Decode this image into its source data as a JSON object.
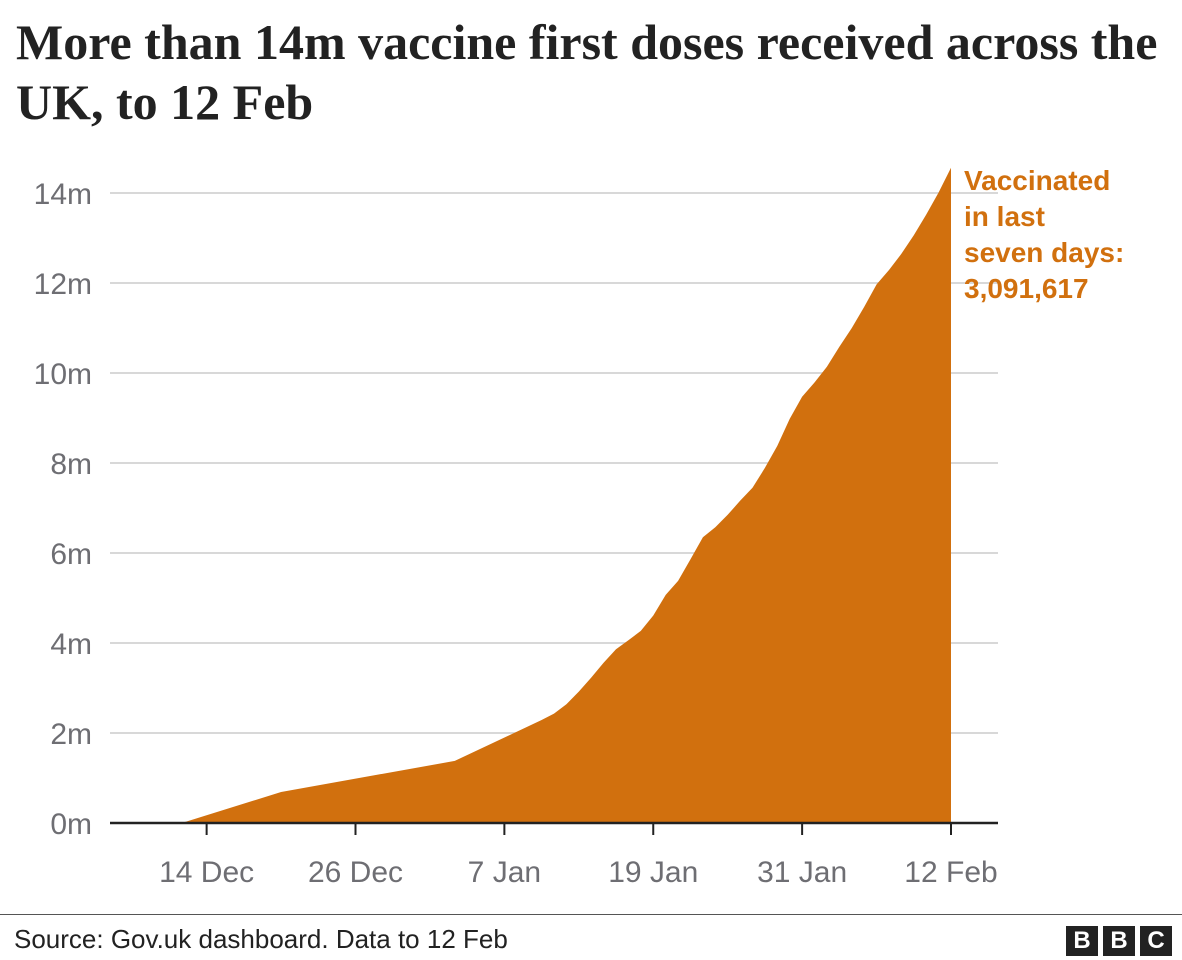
{
  "title": "More than 14m vaccine first doses received across the UK, to 12 Feb",
  "source": "Source: Gov.uk dashboard. Data to 12 Feb",
  "logo": [
    "B",
    "B",
    "C"
  ],
  "colors": {
    "area": "#d1700e",
    "grid": "#cccccc",
    "axis": "#222222",
    "tick_text": "#6e6e73"
  },
  "chart_data": {
    "type": "area",
    "ylim": [
      0,
      14.5
    ],
    "y_unit": "m",
    "y_ticks": [
      {
        "value": 0,
        "label": "0m"
      },
      {
        "value": 2,
        "label": "2m"
      },
      {
        "value": 4,
        "label": "4m"
      },
      {
        "value": 6,
        "label": "6m"
      },
      {
        "value": 8,
        "label": "8m"
      },
      {
        "value": 10,
        "label": "10m"
      },
      {
        "value": 12,
        "label": "12m"
      },
      {
        "value": 14,
        "label": "14m"
      }
    ],
    "x_ticks": [
      {
        "value": "2020-12-14",
        "label": "14 Dec"
      },
      {
        "value": "2020-12-26",
        "label": "26 Dec"
      },
      {
        "value": "2021-01-07",
        "label": "7 Jan"
      },
      {
        "value": "2021-01-19",
        "label": "19 Jan"
      },
      {
        "value": "2021-01-31",
        "label": "31 Jan"
      },
      {
        "value": "2021-02-12",
        "label": "12 Feb"
      }
    ],
    "x": [
      "2020-12-10",
      "2020-12-12",
      "2020-12-20",
      "2021-01-03",
      "2021-01-10",
      "2021-01-11",
      "2021-01-12",
      "2021-01-13",
      "2021-01-14",
      "2021-01-15",
      "2021-01-16",
      "2021-01-17",
      "2021-01-18",
      "2021-01-19",
      "2021-01-20",
      "2021-01-21",
      "2021-01-22",
      "2021-01-23",
      "2021-01-24",
      "2021-01-25",
      "2021-01-26",
      "2021-01-27",
      "2021-01-28",
      "2021-01-29",
      "2021-01-30",
      "2021-01-31",
      "2021-02-01",
      "2021-02-02",
      "2021-02-03",
      "2021-02-04",
      "2021-02-05",
      "2021-02-06",
      "2021-02-07",
      "2021-02-08",
      "2021-02-09",
      "2021-02-10",
      "2021-02-11",
      "2021-02-12"
    ],
    "series": [
      {
        "values": [
          0,
          0,
          0.69,
          1.38,
          2.29,
          2.43,
          2.64,
          2.92,
          3.23,
          3.56,
          3.86,
          4.06,
          4.27,
          4.61,
          5.07,
          5.38,
          5.86,
          6.35,
          6.57,
          6.85,
          7.16,
          7.45,
          7.89,
          8.38,
          8.98,
          9.47,
          9.79,
          10.14,
          10.58,
          11.0,
          11.47,
          11.97,
          12.29,
          12.65,
          13.06,
          13.52,
          14.01,
          14.56
        ]
      }
    ],
    "annotation": {
      "lines": [
        "Vaccinated",
        "in last",
        "seven days:",
        "3,091,617"
      ]
    },
    "grid": true,
    "legend": "none"
  }
}
